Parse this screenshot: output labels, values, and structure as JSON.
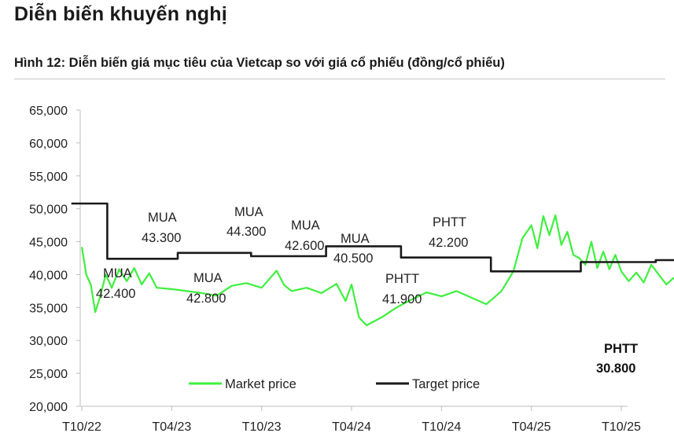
{
  "header": {
    "title": "Diễn biến khuyến nghị",
    "caption": "Hình 12: Diễn biến giá mục tiêu của Vietcap so với giá cổ phiếu (đồng/cổ phiếu)"
  },
  "chart_data": {
    "type": "line",
    "y_ticks": [
      "20,000",
      "25,000",
      "30,000",
      "35,000",
      "40,000",
      "45,000",
      "50,000",
      "55,000",
      "60,000",
      "65,000"
    ],
    "ylim": [
      20000,
      65000
    ],
    "x_ticks": [
      "T10/22",
      "T04/23",
      "T10/23",
      "T04/24",
      "T10/24",
      "T04/25",
      "T10/25"
    ],
    "grid": false,
    "legend_position": "bottom",
    "series": [
      {
        "name": "Market price",
        "color": "#3ef03e",
        "points": [
          [
            0.0,
            44200
          ],
          [
            0.3,
            40000
          ],
          [
            0.6,
            38500
          ],
          [
            0.9,
            34300
          ],
          [
            1.2,
            36500
          ],
          [
            1.6,
            40000
          ],
          [
            2.0,
            38000
          ],
          [
            2.5,
            40800
          ],
          [
            3.0,
            39000
          ],
          [
            3.5,
            41000
          ],
          [
            4.0,
            38500
          ],
          [
            4.5,
            40200
          ],
          [
            5.0,
            38000
          ],
          [
            6.0,
            37800
          ],
          [
            7.0,
            37500
          ],
          [
            8.0,
            37200
          ],
          [
            9.0,
            36800
          ],
          [
            10.0,
            38300
          ],
          [
            11.0,
            38700
          ],
          [
            12.0,
            38000
          ],
          [
            13.0,
            40600
          ],
          [
            13.5,
            38400
          ],
          [
            14.0,
            37500
          ],
          [
            15.0,
            38000
          ],
          [
            16.0,
            37200
          ],
          [
            17.0,
            38600
          ],
          [
            17.6,
            36000
          ],
          [
            18.0,
            38500
          ],
          [
            18.5,
            33500
          ],
          [
            19.0,
            32300
          ],
          [
            20.0,
            33500
          ],
          [
            21.0,
            35000
          ],
          [
            22.0,
            36200
          ],
          [
            23.0,
            37300
          ],
          [
            24.0,
            36700
          ],
          [
            25.0,
            37500
          ],
          [
            26.0,
            36500
          ],
          [
            27.0,
            35500
          ],
          [
            28.0,
            37500
          ],
          [
            28.8,
            40500
          ],
          [
            29.4,
            45500
          ],
          [
            30.0,
            47500
          ],
          [
            30.4,
            44000
          ],
          [
            30.8,
            48900
          ],
          [
            31.2,
            46000
          ],
          [
            31.6,
            49000
          ],
          [
            32.0,
            44500
          ],
          [
            32.4,
            46500
          ],
          [
            32.8,
            43000
          ],
          [
            33.2,
            42500
          ],
          [
            33.6,
            41500
          ],
          [
            34.0,
            45000
          ],
          [
            34.4,
            41000
          ],
          [
            34.8,
            43500
          ],
          [
            35.2,
            40800
          ],
          [
            35.6,
            43000
          ],
          [
            36.0,
            40500
          ],
          [
            36.5,
            39000
          ],
          [
            37.0,
            40300
          ],
          [
            37.5,
            38800
          ],
          [
            38.0,
            41500
          ],
          [
            38.5,
            40000
          ],
          [
            39.0,
            38500
          ],
          [
            39.5,
            39500
          ],
          [
            40.0,
            40000
          ],
          [
            41.0,
            39000
          ],
          [
            42.0,
            39500
          ],
          [
            43.0,
            38800
          ],
          [
            44.0,
            40500
          ],
          [
            45.0,
            39500
          ],
          [
            46.0,
            40300
          ],
          [
            47.0,
            41500
          ],
          [
            48.0,
            40000
          ],
          [
            49.0,
            40500
          ],
          [
            50.0,
            39800
          ],
          [
            51.0,
            40500
          ],
          [
            52.0,
            38000
          ],
          [
            52.2,
            35500
          ],
          [
            52.5,
            39500
          ],
          [
            53.0,
            39000
          ],
          [
            54.0,
            39000
          ],
          [
            55.0,
            39500
          ],
          [
            56.0,
            40000
          ],
          [
            57.0,
            39500
          ],
          [
            58.0,
            40000
          ],
          [
            59.0,
            39500
          ],
          [
            60.0,
            40000
          ],
          [
            60.6,
            38700
          ]
        ]
      },
      {
        "name": "Target price",
        "color": "#1a1a1a",
        "points": [
          [
            -0.7,
            50800
          ],
          [
            1.7,
            50800
          ],
          [
            1.7,
            42400
          ],
          [
            6.4,
            42400
          ],
          [
            6.4,
            43300
          ],
          [
            11.3,
            43300
          ],
          [
            11.3,
            42800
          ],
          [
            16.3,
            42800
          ],
          [
            16.3,
            44300
          ],
          [
            21.3,
            44300
          ],
          [
            21.3,
            42600
          ],
          [
            27.3,
            42600
          ],
          [
            27.3,
            40500
          ],
          [
            33.3,
            40500
          ],
          [
            33.3,
            41900
          ],
          [
            38.3,
            41900
          ],
          [
            38.3,
            42200
          ],
          [
            60.5,
            42200
          ],
          [
            60.5,
            30800
          ]
        ]
      }
    ],
    "annotations": [
      {
        "line1": "MUA",
        "line2": "42.400"
      },
      {
        "line1": "MUA",
        "line2": "43.300"
      },
      {
        "line1": "MUA",
        "line2": "42.800"
      },
      {
        "line1": "MUA",
        "line2": "44.300"
      },
      {
        "line1": "MUA",
        "line2": "42.600"
      },
      {
        "line1": "MUA",
        "line2": "40.500"
      },
      {
        "line1": "PHTT",
        "line2": "41.900"
      },
      {
        "line1": "PHTT",
        "line2": "42.200"
      },
      {
        "line1": "PHTT",
        "line2": "30.800"
      }
    ]
  }
}
